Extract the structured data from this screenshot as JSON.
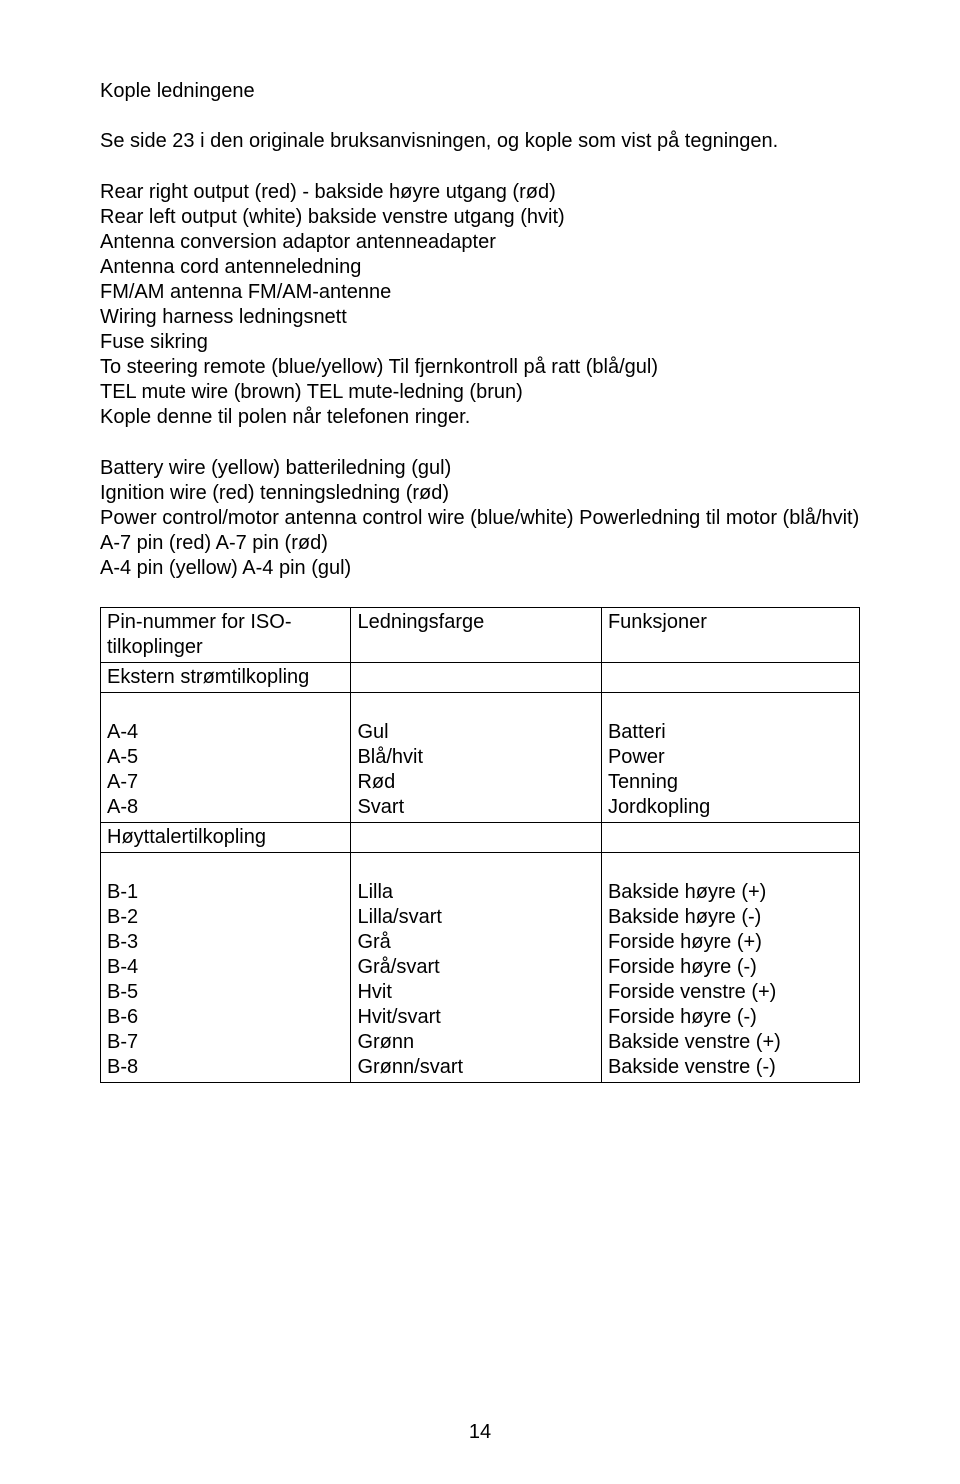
{
  "title": "Kople ledningene",
  "intro": "Se side 23 i den originale bruksanvisningen, og kople som vist på tegningen.",
  "block1": [
    "Rear right output (red) - bakside høyre utgang (rød)",
    "Rear left output (white) bakside venstre utgang (hvit)",
    "Antenna conversion adaptor antenneadapter",
    "Antenna cord antenneledning",
    "FM/AM antenna FM/AM-antenne",
    "Wiring harness ledningsnett",
    "Fuse sikring",
    "To steering remote (blue/yellow) Til fjernkontroll på ratt (blå/gul)",
    "TEL mute wire (brown) TEL mute-ledning (brun)",
    "Kople denne til polen når telefonen ringer."
  ],
  "block2": [
    "Battery wire (yellow) batteriledning (gul)",
    "Ignition wire (red) tenningsledning (rød)",
    "Power control/motor antenna control wire (blue/white) Powerledning til motor (blå/hvit)",
    "A-7 pin (red) A-7 pin (rød)",
    "A-4 pin (yellow) A-4 pin (gul)"
  ],
  "table": {
    "header": {
      "c1a": "Pin-nummer for ISO-",
      "c1b": "tilkoplinger",
      "c2": "Ledningsfarge",
      "c3": "Funksjoner"
    },
    "sectionA_header": "Ekstern strømtilkopling",
    "sectionA": {
      "pins": [
        "A-4",
        "A-5",
        "A-7",
        "A-8"
      ],
      "colors": [
        "Gul",
        "Blå/hvit",
        "Rød",
        "Svart"
      ],
      "funcs": [
        "Batteri",
        "Power",
        "Tenning",
        "Jordkopling"
      ]
    },
    "sectionB_header": "Høyttalertilkopling",
    "sectionB": {
      "pins": [
        "B-1",
        "B-2",
        "B-3",
        "B-4",
        "B-5",
        "B-6",
        "B-7",
        "B-8"
      ],
      "colors": [
        "Lilla",
        "Lilla/svart",
        "Grå",
        "Grå/svart",
        "Hvit",
        "Hvit/svart",
        "Grønn",
        "Grønn/svart"
      ],
      "funcs": [
        "Bakside høyre (+)",
        "Bakside høyre (-)",
        "Forside høyre (+)",
        "Forside høyre (-)",
        "Forside venstre (+)",
        "Forside høyre (-)",
        "Bakside venstre (+)",
        "Bakside venstre (-)"
      ]
    }
  },
  "page_number": "14"
}
